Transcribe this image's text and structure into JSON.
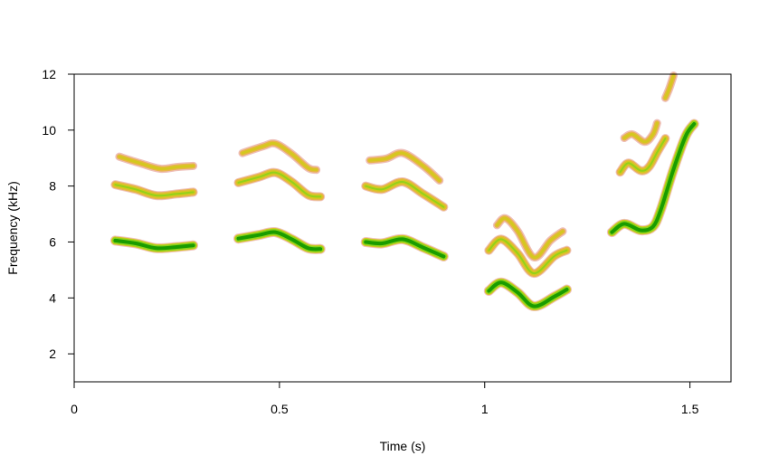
{
  "chart_data": {
    "type": "spectrogram",
    "title": "",
    "xlabel": "Time (s)",
    "ylabel": "Frequency (kHz)",
    "xlim": [
      0,
      1.6
    ],
    "ylim": [
      1,
      12
    ],
    "xticks": [
      {
        "value": 0,
        "label": "0"
      },
      {
        "value": 0.5,
        "label": "0.5"
      },
      {
        "value": 1,
        "label": "1"
      },
      {
        "value": 1.5,
        "label": "1.5"
      }
    ],
    "yticks": [
      {
        "value": 2,
        "label": "2"
      },
      {
        "value": 4,
        "label": "4"
      },
      {
        "value": 6,
        "label": "6"
      },
      {
        "value": 8,
        "label": "8"
      },
      {
        "value": 10,
        "label": "10"
      },
      {
        "value": 12,
        "label": "12"
      }
    ],
    "grid": false,
    "colors": {
      "strong_core": "#1a9c00",
      "strong_body": "#8cd21a",
      "medium_core": "#d4c81e",
      "medium_body": "#e8b44a",
      "halo": "#e8a8a0"
    },
    "series": [
      {
        "intensity": "strong",
        "points": [
          [
            0.1,
            6.05
          ],
          [
            0.15,
            5.95
          ],
          [
            0.2,
            5.78
          ],
          [
            0.25,
            5.82
          ],
          [
            0.29,
            5.88
          ]
        ]
      },
      {
        "intensity": "medium",
        "points": [
          [
            0.1,
            8.05
          ],
          [
            0.15,
            7.88
          ],
          [
            0.2,
            7.66
          ],
          [
            0.25,
            7.72
          ],
          [
            0.29,
            7.78
          ]
        ]
      },
      {
        "intensity": "weak",
        "points": [
          [
            0.11,
            9.05
          ],
          [
            0.16,
            8.82
          ],
          [
            0.21,
            8.62
          ],
          [
            0.25,
            8.68
          ],
          [
            0.29,
            8.72
          ]
        ]
      },
      {
        "intensity": "strong",
        "points": [
          [
            0.4,
            6.12
          ],
          [
            0.45,
            6.25
          ],
          [
            0.49,
            6.35
          ],
          [
            0.53,
            6.1
          ],
          [
            0.57,
            5.78
          ],
          [
            0.6,
            5.75
          ]
        ]
      },
      {
        "intensity": "medium",
        "points": [
          [
            0.4,
            8.12
          ],
          [
            0.45,
            8.32
          ],
          [
            0.49,
            8.48
          ],
          [
            0.53,
            8.15
          ],
          [
            0.57,
            7.68
          ],
          [
            0.6,
            7.62
          ]
        ]
      },
      {
        "intensity": "weak",
        "points": [
          [
            0.41,
            9.18
          ],
          [
            0.46,
            9.42
          ],
          [
            0.49,
            9.52
          ],
          [
            0.53,
            9.15
          ],
          [
            0.57,
            8.65
          ],
          [
            0.59,
            8.58
          ]
        ]
      },
      {
        "intensity": "strong",
        "points": [
          [
            0.71,
            6.0
          ],
          [
            0.75,
            5.95
          ],
          [
            0.8,
            6.1
          ],
          [
            0.85,
            5.8
          ],
          [
            0.9,
            5.48
          ]
        ]
      },
      {
        "intensity": "medium",
        "points": [
          [
            0.71,
            8.0
          ],
          [
            0.75,
            7.88
          ],
          [
            0.8,
            8.15
          ],
          [
            0.85,
            7.72
          ],
          [
            0.9,
            7.25
          ]
        ]
      },
      {
        "intensity": "weak",
        "points": [
          [
            0.72,
            8.92
          ],
          [
            0.76,
            8.98
          ],
          [
            0.8,
            9.18
          ],
          [
            0.85,
            8.72
          ],
          [
            0.89,
            8.2
          ]
        ]
      },
      {
        "intensity": "strong",
        "points": [
          [
            1.01,
            4.25
          ],
          [
            1.04,
            4.55
          ],
          [
            1.08,
            4.2
          ],
          [
            1.12,
            3.7
          ],
          [
            1.17,
            4.05
          ],
          [
            1.2,
            4.3
          ]
        ]
      },
      {
        "intensity": "medium",
        "points": [
          [
            1.01,
            5.7
          ],
          [
            1.04,
            6.1
          ],
          [
            1.08,
            5.6
          ],
          [
            1.12,
            4.88
          ],
          [
            1.17,
            5.5
          ],
          [
            1.2,
            5.7
          ]
        ]
      },
      {
        "intensity": "weak",
        "points": [
          [
            1.03,
            6.6
          ],
          [
            1.05,
            6.85
          ],
          [
            1.08,
            6.4
          ],
          [
            1.12,
            5.45
          ],
          [
            1.16,
            6.05
          ],
          [
            1.19,
            6.38
          ]
        ]
      },
      {
        "intensity": "strong",
        "points": [
          [
            1.31,
            6.35
          ],
          [
            1.34,
            6.65
          ],
          [
            1.38,
            6.42
          ],
          [
            1.41,
            6.55
          ],
          [
            1.43,
            7.2
          ],
          [
            1.46,
            8.6
          ],
          [
            1.49,
            9.8
          ],
          [
            1.51,
            10.22
          ]
        ]
      },
      {
        "intensity": "medium",
        "points": [
          [
            1.33,
            8.5
          ],
          [
            1.35,
            8.82
          ],
          [
            1.38,
            8.55
          ],
          [
            1.4,
            8.68
          ],
          [
            1.42,
            9.2
          ],
          [
            1.44,
            9.7
          ]
        ]
      },
      {
        "intensity": "weak",
        "points": [
          [
            1.34,
            9.72
          ],
          [
            1.36,
            9.85
          ],
          [
            1.39,
            9.58
          ],
          [
            1.41,
            9.85
          ],
          [
            1.42,
            10.25
          ]
        ]
      },
      {
        "intensity": "weak",
        "points": [
          [
            1.44,
            11.15
          ],
          [
            1.45,
            11.5
          ],
          [
            1.46,
            11.95
          ]
        ]
      }
    ]
  }
}
